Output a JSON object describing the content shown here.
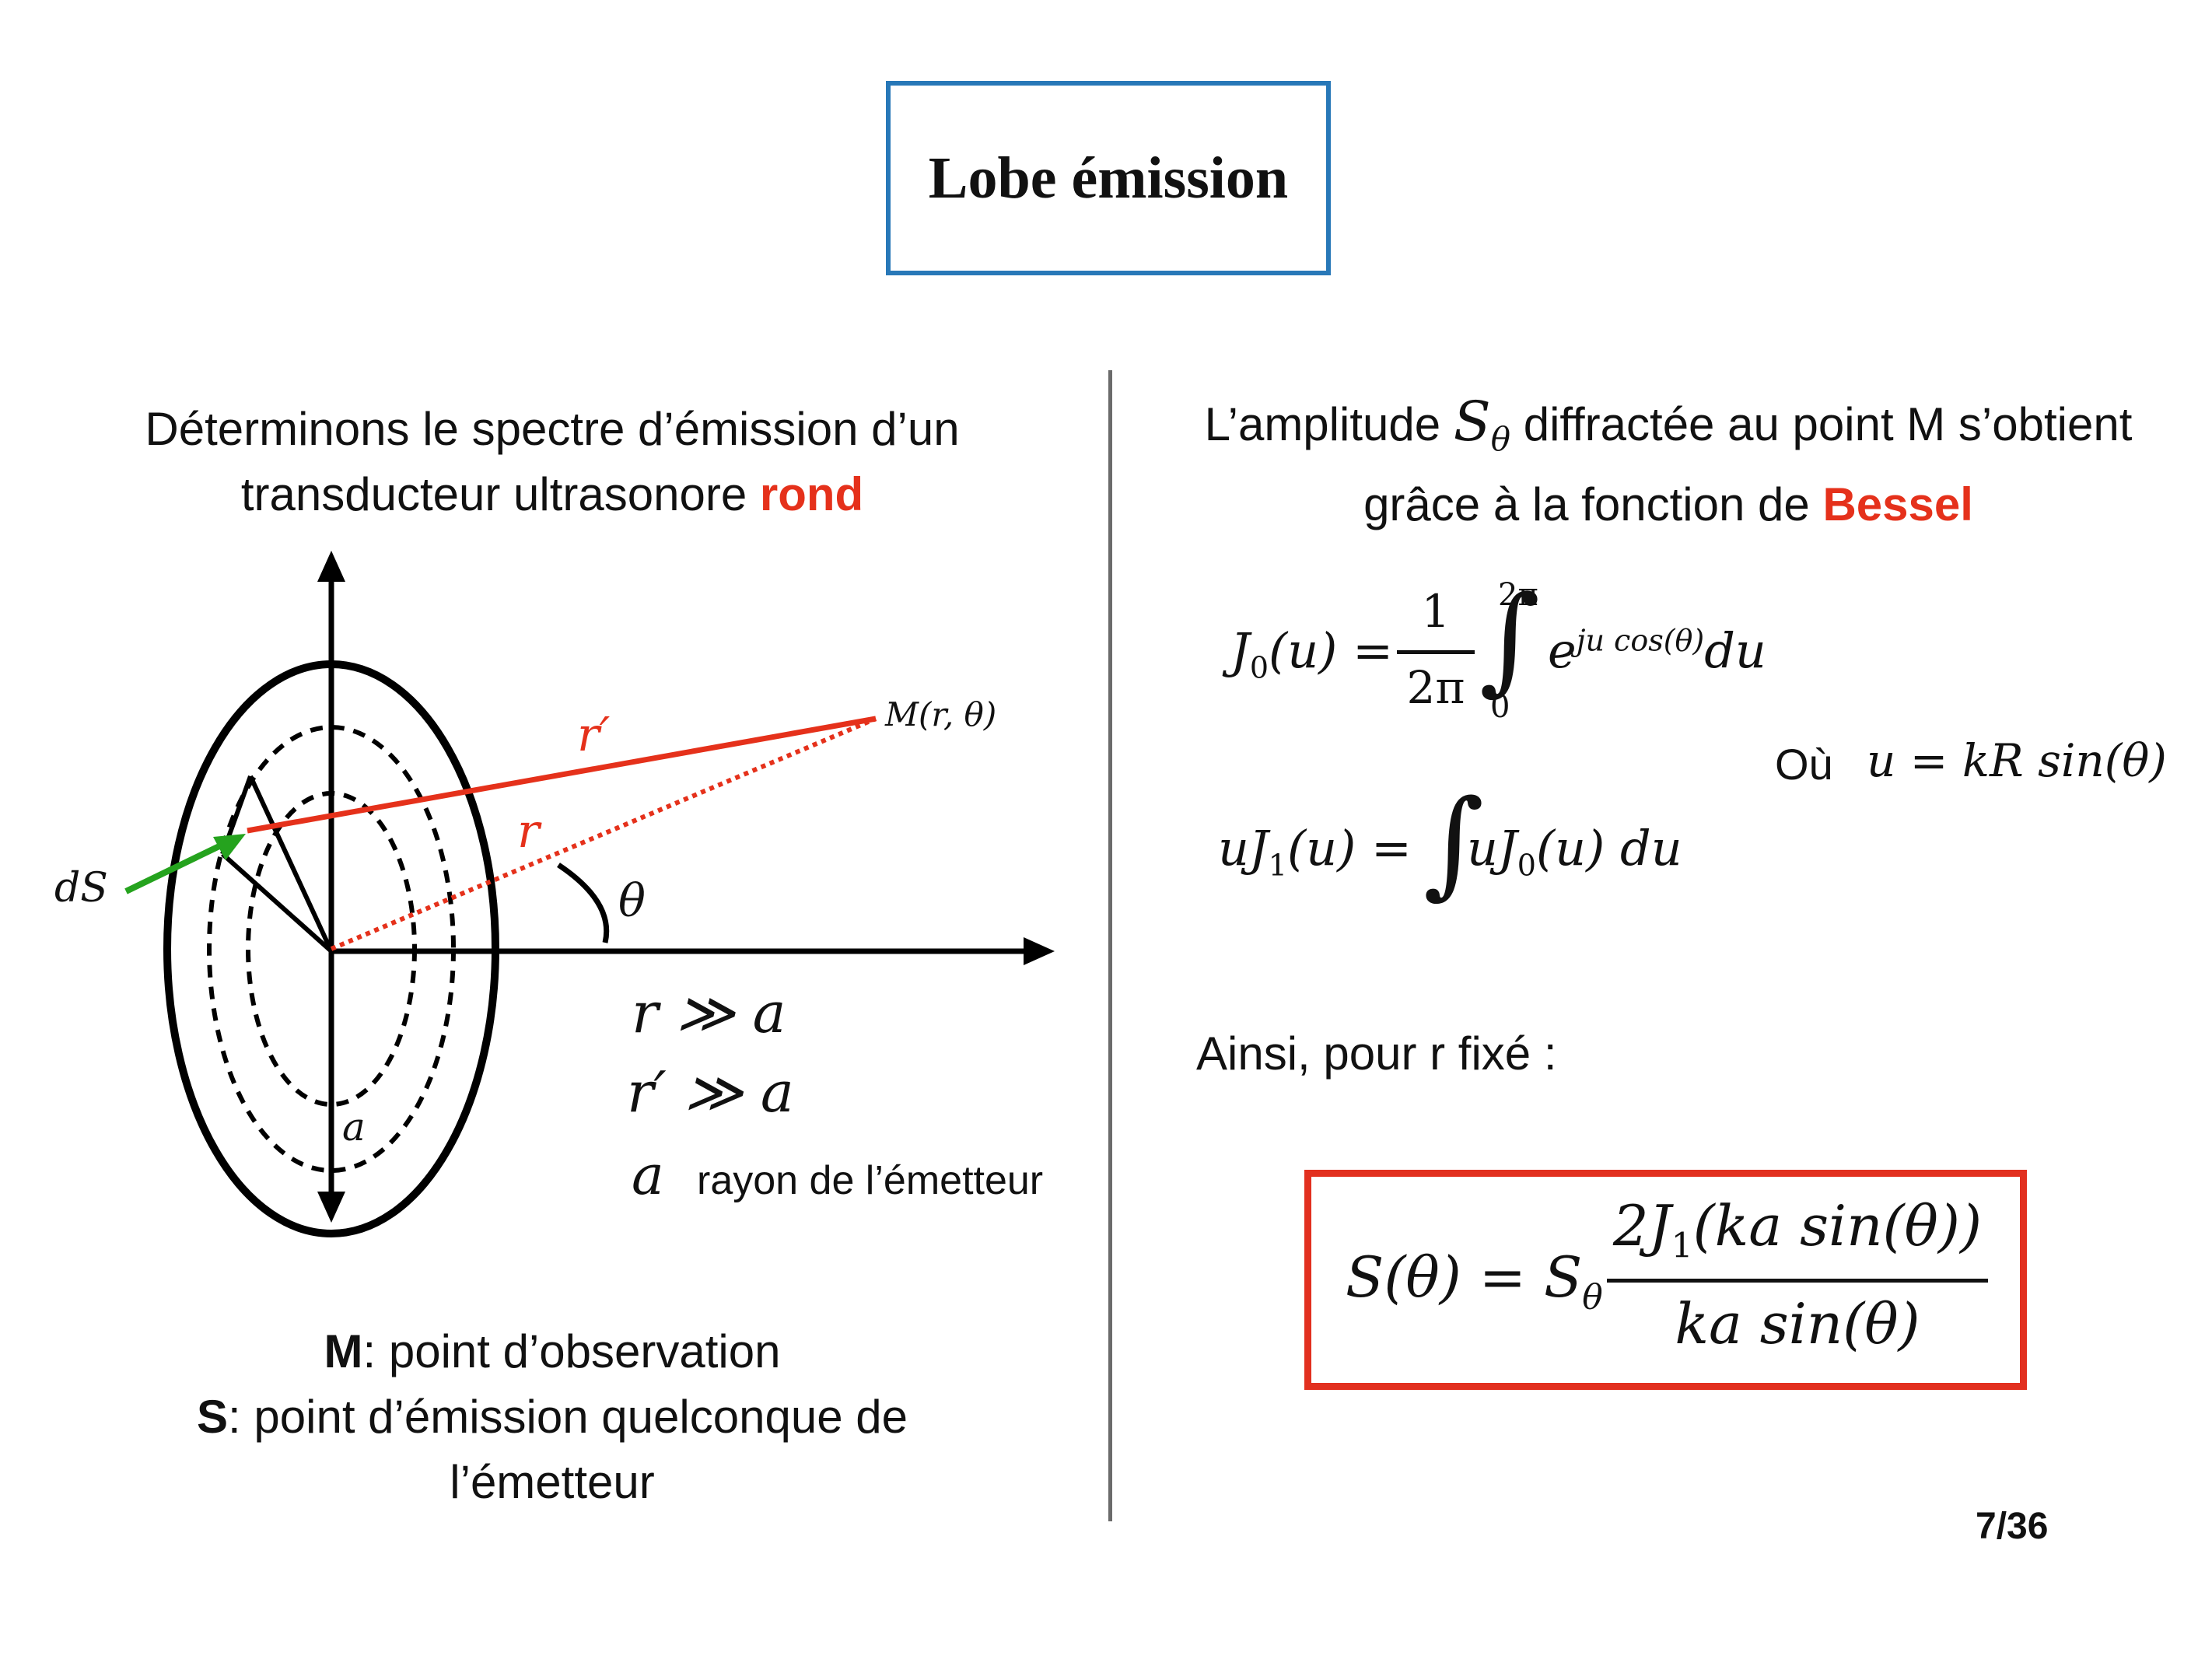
{
  "slide": {
    "title": "Lobe émission",
    "page_number": "7/36"
  },
  "left": {
    "intro_line1": "Déterminons le spectre d’émission d’un",
    "intro_line2_prefix": "transducteur ultrasonore ",
    "intro_line2_highlight": "rond",
    "diagram": {
      "label_dS": "dS",
      "label_r_prime": "r′",
      "label_r": "r",
      "label_M": "M(r, θ)",
      "label_theta": "θ",
      "label_a": "a"
    },
    "conditions": {
      "cond1": "r ≫ a",
      "cond2": "r′ ≫ a",
      "a_symbol": "a",
      "a_desc": "rayon de l’émetteur"
    },
    "legend": {
      "m_key": "M",
      "m_text": ": point d’observation",
      "s_key": "S",
      "s_text": ": point d’émission quelconque de",
      "s_text2": "l’émetteur"
    }
  },
  "right": {
    "intro_line1_prefix": "L’amplitude ",
    "intro_symbol": "S",
    "intro_symbol_sub": "θ",
    "intro_line1_suffix": " diffractée au point M s’obtient",
    "intro_line2_prefix": "grâce à la fonction de ",
    "intro_line2_highlight": "Bessel",
    "eq1": {
      "lhs": "J",
      "lhs_sub": "0",
      "lhs_arg": "(u) =",
      "frac_num": "1",
      "frac_den": "2π",
      "upper": "2π",
      "lower": "0",
      "integrand": "e",
      "exponent": "ju cos(θ)",
      "diff": "du"
    },
    "where_label": "Où",
    "where_eq": "u = kR sin(θ)",
    "eq2": {
      "lhs": "uJ",
      "lhs_sub": "1",
      "lhs_arg": "(u) =",
      "integrand": "uJ",
      "integrand_sub": "0",
      "integrand_tail": "(u) du"
    },
    "thus": "Ainsi, pour r fixé :",
    "result": {
      "lhs": "S(θ) = S",
      "lhs_sub": "θ",
      "num": "2J",
      "num_sub": "1",
      "num_tail": "(ka sin(θ))",
      "den": "ka sin(θ)"
    }
  },
  "colors": {
    "title_border": "#2878b8",
    "highlight_red": "#e5311b",
    "arrow_green": "#25a31e",
    "divider": "#6b6b6b"
  }
}
